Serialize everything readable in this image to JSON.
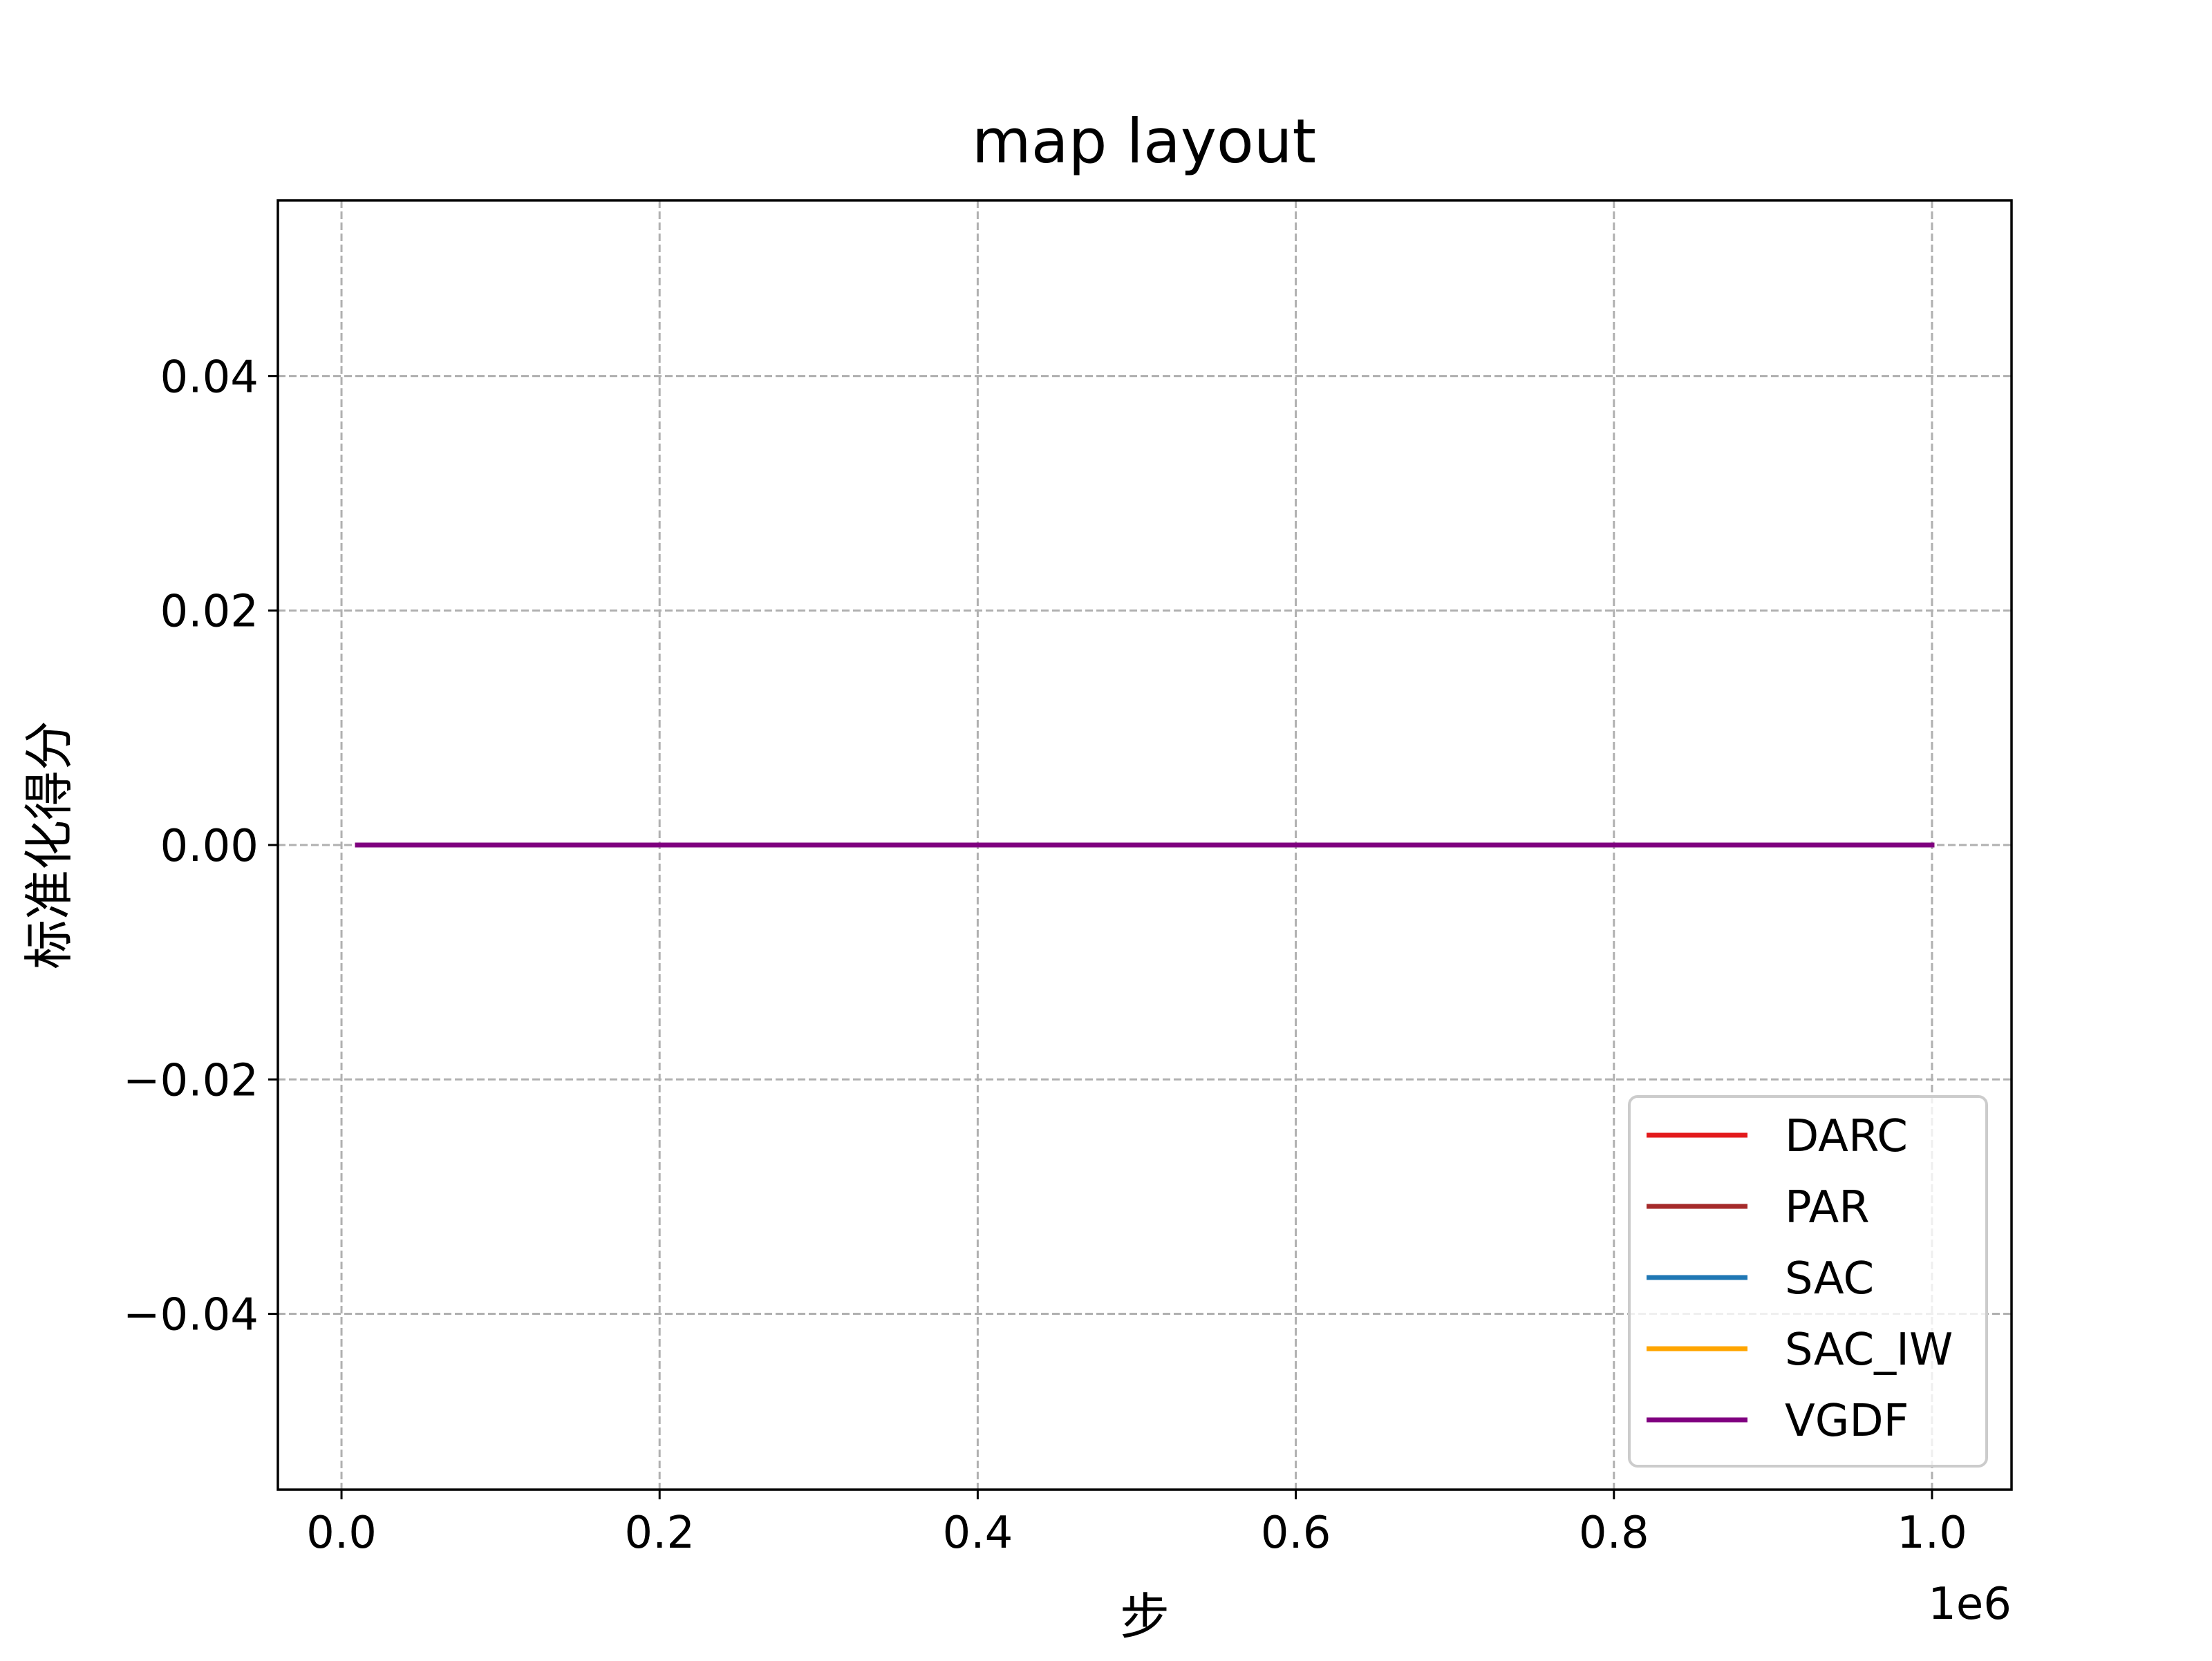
{
  "chart_data": {
    "type": "line",
    "title": "map layout",
    "xlabel": "步",
    "ylabel": "标准化得分",
    "x_offset_text": "1e6",
    "xlim": [
      -0.04,
      1.05
    ],
    "ylim": [
      -0.055,
      0.055
    ],
    "x_ticks": [
      0.0,
      0.2,
      0.4,
      0.6,
      0.8,
      1.0
    ],
    "x_tick_labels": [
      "0.0",
      "0.2",
      "0.4",
      "0.6",
      "0.8",
      "1.0"
    ],
    "y_ticks": [
      0.04,
      0.02,
      0.0,
      -0.02,
      -0.04
    ],
    "y_tick_labels": [
      "0.04",
      "0.02",
      "0.00",
      "−0.02",
      "−0.04"
    ],
    "grid": true,
    "legend_position": "lower right",
    "series": [
      {
        "name": "DARC",
        "color": "#e31a1c",
        "x": [
          0.01,
          1.0
        ],
        "y": [
          0.0,
          0.0
        ]
      },
      {
        "name": "PAR",
        "color": "#a52a2a",
        "x": [
          0.01,
          1.0
        ],
        "y": [
          0.0,
          0.0
        ]
      },
      {
        "name": "SAC",
        "color": "#1f77b4",
        "x": [
          0.01,
          1.0
        ],
        "y": [
          0.0,
          0.0
        ]
      },
      {
        "name": "SAC_IW",
        "color": "#ffa500",
        "x": [
          0.01,
          1.0
        ],
        "y": [
          0.0,
          0.0
        ]
      },
      {
        "name": "VGDF",
        "color": "#800080",
        "x": [
          0.01,
          1.0
        ],
        "y": [
          0.0,
          0.0
        ]
      }
    ]
  }
}
